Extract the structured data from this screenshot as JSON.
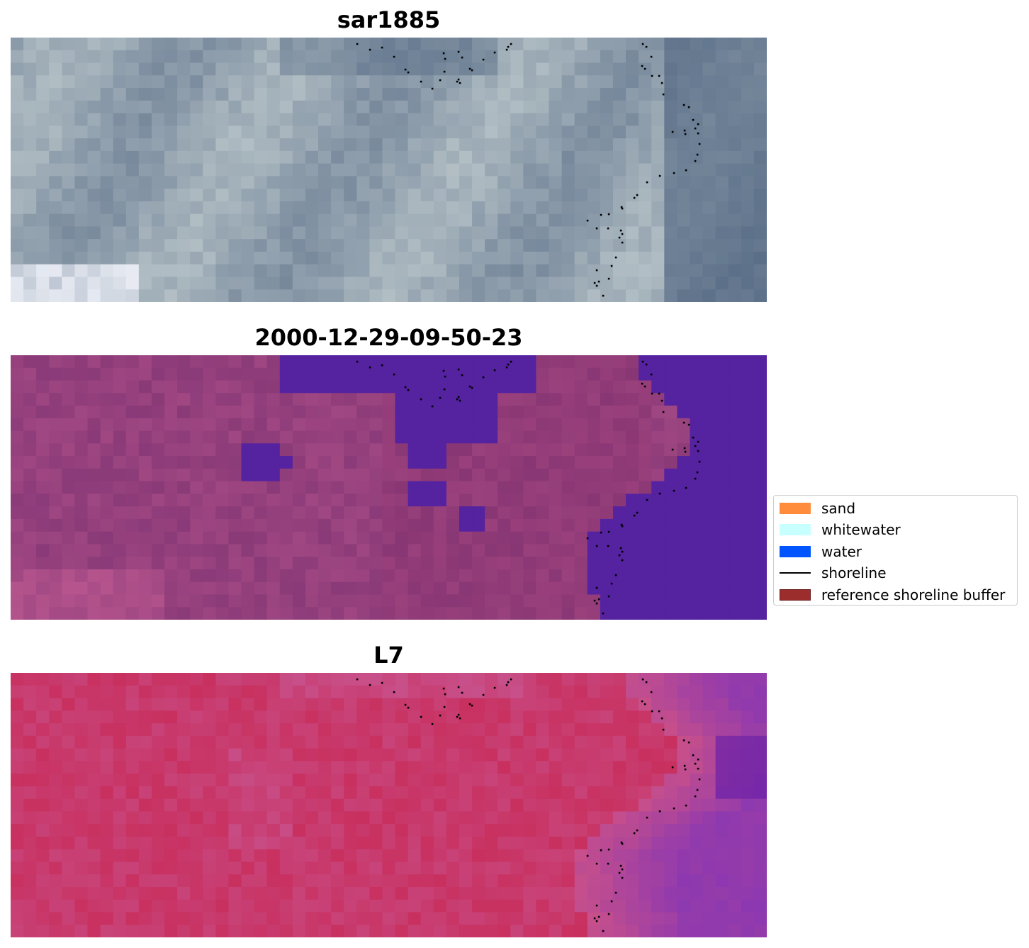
{
  "panels": [
    {
      "title": "sar1885",
      "image": "sar-composite"
    },
    {
      "title": "2000-12-29-09-50-23",
      "image": "classified-overlay"
    },
    {
      "title": "L7",
      "image": "false-color-composite"
    }
  ],
  "legend": {
    "items": [
      {
        "label": "sand",
        "color": "#ff8c3c",
        "kind": "patch"
      },
      {
        "label": "whitewater",
        "color": "#c8ffff",
        "kind": "patch"
      },
      {
        "label": "water",
        "color": "#0055ff",
        "kind": "patch"
      },
      {
        "label": "shoreline",
        "color": "#000000",
        "kind": "line"
      },
      {
        "label": "reference shoreline buffer",
        "color": "#9b2d2d",
        "edge": "#6b1a1a",
        "kind": "patch"
      }
    ]
  },
  "colors": {
    "sar_base": "#6f8196",
    "sar_light": "#b7c3c8",
    "sar_dark": "#445a78",
    "land_magenta": "#8a3a78",
    "water_purple": "#5522a0",
    "l7_red": "#c82550",
    "l7_pink": "#c8508a",
    "l7_purple": "#6a20a8",
    "shoreline_points": "#000000"
  }
}
